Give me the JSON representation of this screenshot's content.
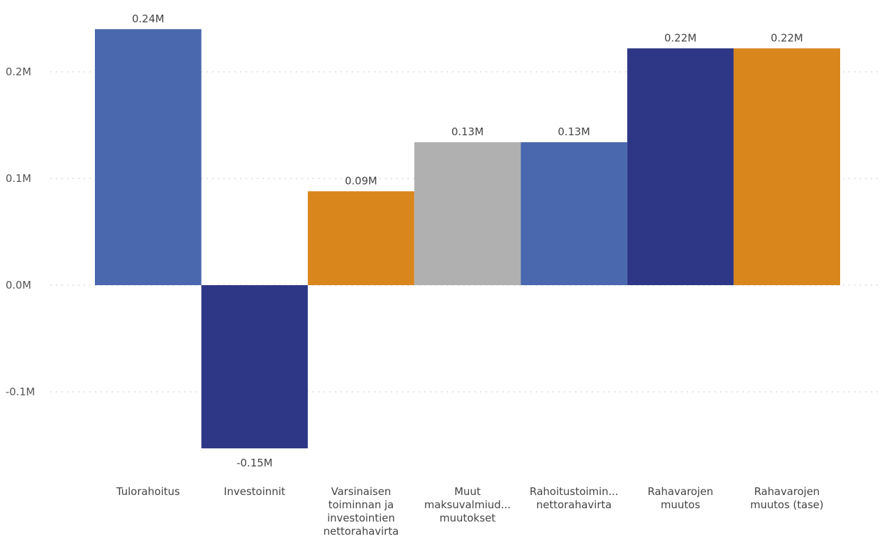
{
  "chart_data": {
    "type": "bar",
    "categories": [
      [
        "Tulorahoitus"
      ],
      [
        "Investoinnit"
      ],
      [
        "Varsinaisen",
        "toiminnan ja",
        "investointien",
        "nettorahavirta"
      ],
      [
        "Muut",
        "maksuvalmiud...",
        "muutokset"
      ],
      [
        "Rahoitustoimin...",
        "nettorahavirta"
      ],
      [
        "Rahavarojen",
        "muutos"
      ],
      [
        "Rahavarojen",
        "muutos (tase)"
      ]
    ],
    "values": [
      0.24,
      -0.153,
      0.088,
      0.134,
      0.134,
      0.222,
      0.222
    ],
    "data_labels": [
      "0.24M",
      "-0.15M",
      "0.09M",
      "0.13M",
      "0.13M",
      "0.22M",
      "0.22M"
    ],
    "colors": [
      "#4a68ad",
      "#2e3786",
      "#d9861c",
      "#b0b0b0",
      "#4a68ad",
      "#2e3786",
      "#d9861c"
    ],
    "yticks": [
      0.2,
      0.1,
      0.0,
      -0.1
    ],
    "ytick_labels": [
      "0.2M",
      "0.1M",
      "0.0M",
      "-0.1M"
    ],
    "ylim": [
      -0.17,
      0.255
    ],
    "grid": true,
    "title": "",
    "xlabel": "",
    "ylabel": ""
  }
}
